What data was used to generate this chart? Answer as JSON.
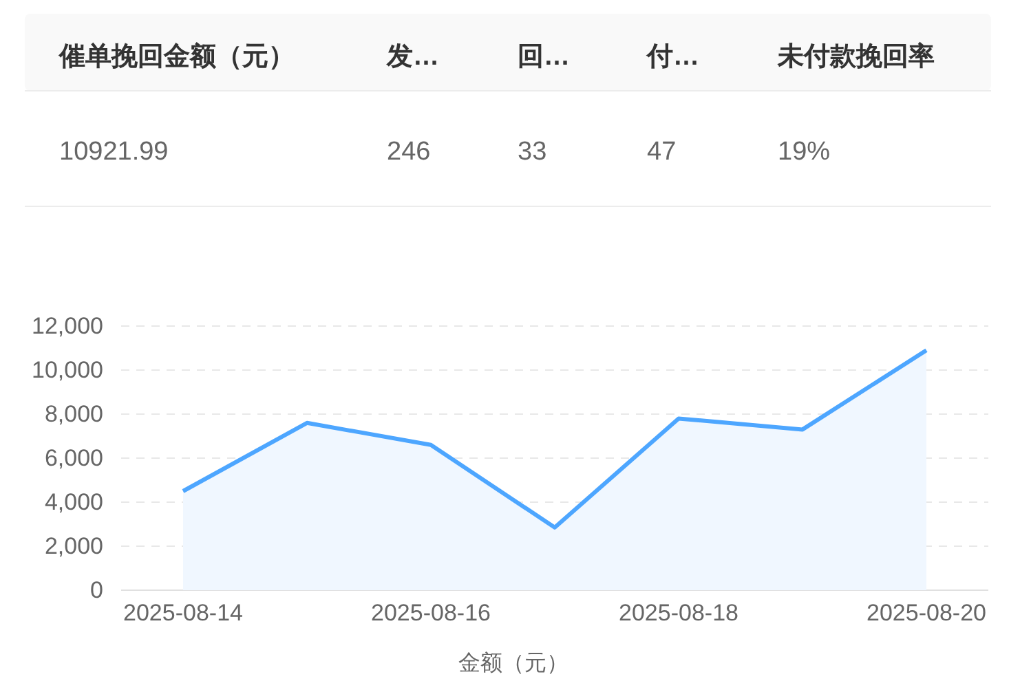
{
  "chart_data": [
    {
      "type": "other",
      "categories": [
        "催单挽回金额（元）",
        "发…",
        "回…",
        "付…",
        "未付款挽回率"
      ],
      "value_labels": [
        "10921.99",
        "246",
        "33",
        "47",
        "19%"
      ]
    },
    {
      "type": "area",
      "categories": [
        "2025-08-14",
        null,
        "2025-08-16",
        null,
        "2025-08-18",
        null,
        "2025-08-20"
      ],
      "values": [
        4500,
        7600,
        6600,
        2850,
        7800,
        7300,
        10900
      ],
      "color": "#4da6ff",
      "ylim": [
        0,
        12000
      ],
      "yticks": [
        {
          "value": 0,
          "label": "0"
        },
        {
          "value": 2000,
          "label": "2,000"
        },
        {
          "value": 4000,
          "label": "4,000"
        },
        {
          "value": 6000,
          "label": "6,000"
        },
        {
          "value": 8000,
          "label": "8,000"
        },
        {
          "value": 10000,
          "label": "10,000"
        },
        {
          "value": 12000,
          "label": "12,000"
        }
      ],
      "grid": "y",
      "xlabel": "金额（元）"
    }
  ]
}
